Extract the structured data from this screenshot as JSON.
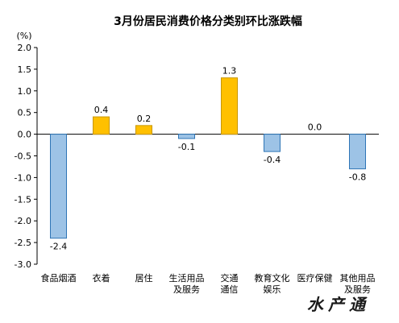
{
  "chart_data": {
    "type": "bar",
    "title": "3月份居民消费价格分类别环比涨跌幅",
    "unit": "(%)",
    "ylim": [
      -3.0,
      2.0
    ],
    "yticks": [
      "2.0",
      "1.5",
      "1.0",
      "0.5",
      "0.0",
      "-0.5",
      "-1.0",
      "-1.5",
      "-2.0",
      "-2.5",
      "-3.0"
    ],
    "grid": false,
    "categories": [
      [
        "食品烟酒"
      ],
      [
        "衣着"
      ],
      [
        "居住"
      ],
      [
        "生活用品",
        "及服务"
      ],
      [
        "交通",
        "通信"
      ],
      [
        "教育文化",
        "娱乐"
      ],
      [
        "医疗保健"
      ],
      [
        "其他用品",
        "及服务"
      ]
    ],
    "values": [
      -2.4,
      0.4,
      0.2,
      -0.1,
      1.3,
      -0.4,
      0.0,
      -0.8
    ],
    "data_labels": [
      "-2.4",
      "0.4",
      "0.2",
      "-0.1",
      "1.3",
      "-0.4",
      "0.0",
      "-0.8"
    ],
    "colors": {
      "positive_fill": "#FFC000",
      "positive_stroke": "#C89600",
      "negative_fill": "#9DC3E6",
      "negative_stroke": "#2E75B6",
      "axis": "#000000"
    }
  },
  "watermark": "水产通"
}
